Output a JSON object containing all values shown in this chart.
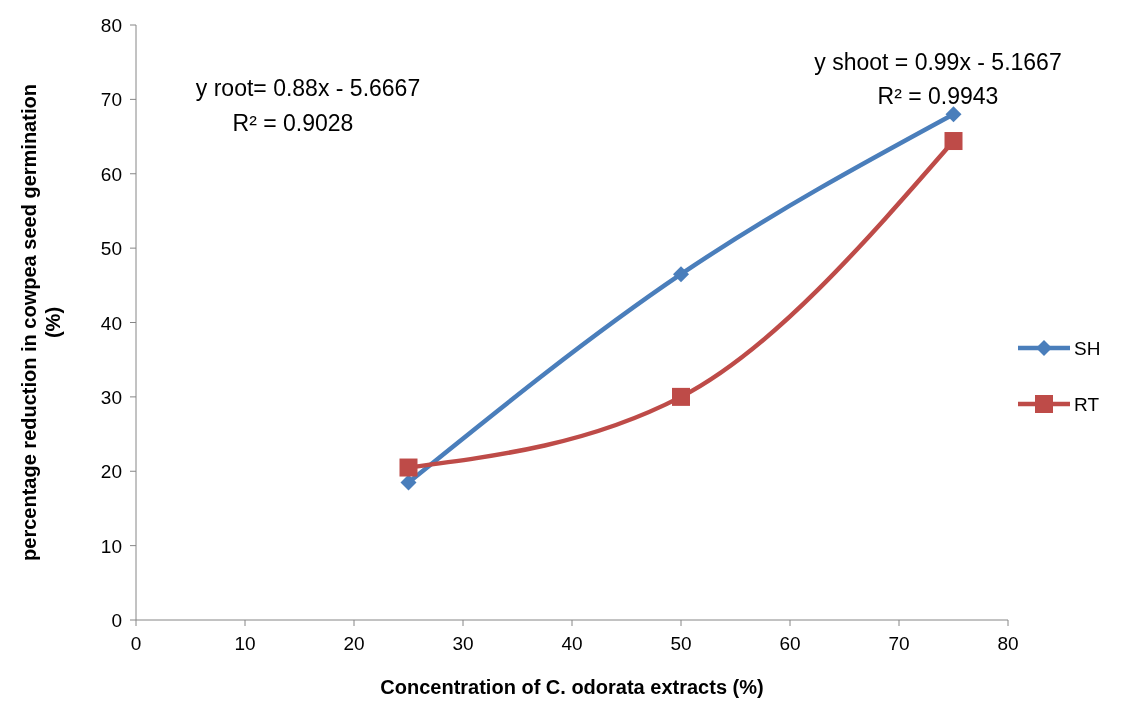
{
  "chart_data": {
    "type": "line",
    "xlabel": "Concentration of C. odorata extracts (%)",
    "ylabel": "percentage reduction in  cowpea seed germination (%)",
    "x": [
      25,
      50,
      75
    ],
    "series": [
      {
        "name": "SH",
        "color": "#4a7ebb",
        "values": [
          18.5,
          46.5,
          68
        ],
        "marker": "diamond"
      },
      {
        "name": "RT",
        "color": "#be4b48",
        "values": [
          20.5,
          30,
          64.4
        ],
        "marker": "square"
      }
    ],
    "xlim": [
      0,
      80
    ],
    "xticks": [
      0,
      10,
      20,
      30,
      40,
      50,
      60,
      70,
      80
    ],
    "ylim": [
      0,
      80
    ],
    "yticks": [
      0,
      10,
      20,
      30,
      40,
      50,
      60,
      70,
      80
    ],
    "grid": false,
    "legend": "right",
    "line_style": "solid",
    "annotations": [
      "y  root= 0.88x - 5.6667",
      "R² = 0.9028",
      "y  shoot = 0.99x - 5.1667",
      "R² = 0.9943"
    ]
  }
}
